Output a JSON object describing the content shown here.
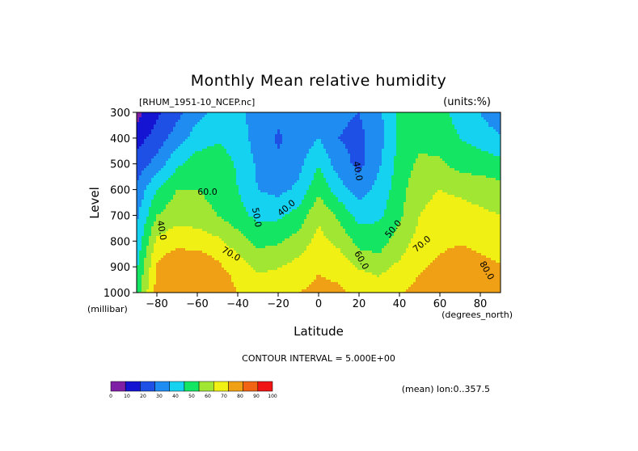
{
  "chart_data": {
    "type": "contour",
    "title": "Monthly Mean relative humidity",
    "file_label": "[RHUM_1951-10_NCEP.nc]",
    "units_label": "(units:%)",
    "xlabel": "Latitude",
    "x_units": "(degrees_north)",
    "ylabel": "Level",
    "y_units": "(millibar)",
    "xlim": [
      -90,
      90
    ],
    "ylim": [
      1000,
      300
    ],
    "x_ticks": [
      -80,
      -60,
      -40,
      -20,
      0,
      20,
      40,
      60,
      80
    ],
    "y_ticks": [
      300,
      400,
      500,
      600,
      700,
      800,
      900,
      1000
    ],
    "contour_interval_text": "CONTOUR INTERVAL = 5.000E+00",
    "footnote": "(mean) lon:0..357.5",
    "colorbar": {
      "ticks": [
        "0",
        "10",
        "20",
        "30",
        "40",
        "50",
        "60",
        "70",
        "80",
        "90",
        "100"
      ],
      "colors": [
        "#7f1fa6",
        "#1414d2",
        "#1e50e6",
        "#1e8cf0",
        "#14d2f0",
        "#14e664",
        "#a0e632",
        "#f0f014",
        "#f0a014",
        "#f06414",
        "#f01414"
      ]
    },
    "contour_labels": [
      "40.0",
      "60.0",
      "50.0",
      "40.0",
      "40.0",
      "70.0",
      "60.0",
      "50.0",
      "70.0",
      "80.0"
    ],
    "latitudes": [
      -90,
      -80,
      -70,
      -60,
      -50,
      -40,
      -30,
      -20,
      -10,
      0,
      10,
      20,
      30,
      40,
      50,
      60,
      70,
      80,
      90
    ],
    "levels": [
      1000,
      925,
      850,
      700,
      600,
      500,
      400,
      300
    ],
    "values": [
      [
        55,
        84,
        88,
        89,
        86,
        80,
        76,
        77,
        80,
        82,
        82,
        78,
        74,
        79,
        83,
        86,
        89,
        86,
        84
      ],
      [
        50,
        82,
        86,
        87,
        84,
        77,
        70,
        72,
        76,
        80,
        78,
        72,
        69,
        75,
        80,
        84,
        86,
        84,
        82
      ],
      [
        45,
        78,
        82,
        82,
        78,
        70,
        62,
        64,
        69,
        76,
        72,
        62,
        60,
        68,
        76,
        80,
        82,
        80,
        78
      ],
      [
        38,
        60,
        66,
        64,
        60,
        54,
        47,
        48,
        54,
        68,
        58,
        46,
        48,
        58,
        70,
        74,
        74,
        72,
        70
      ],
      [
        32,
        50,
        60,
        60,
        57,
        50,
        40,
        37,
        42,
        58,
        44,
        36,
        43,
        56,
        67,
        70,
        68,
        66,
        64
      ],
      [
        24,
        34,
        48,
        55,
        55,
        49,
        38,
        31,
        37,
        49,
        35,
        27,
        39,
        54,
        62,
        62,
        56,
        55,
        53
      ],
      [
        16,
        24,
        35,
        45,
        49,
        46,
        35,
        29,
        33,
        40,
        30,
        27,
        36,
        52,
        57,
        55,
        50,
        46,
        42
      ],
      [
        6,
        18,
        27,
        37,
        42,
        42,
        36,
        32,
        33,
        37,
        32,
        30,
        38,
        52,
        55,
        52,
        47,
        40,
        30
      ]
    ]
  }
}
